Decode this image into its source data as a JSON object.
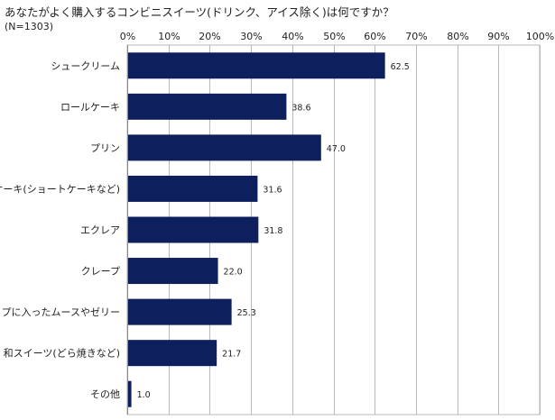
{
  "title": "あなたがよく購入するコンビニスイーツ(ドリンク、アイス除く)は何ですか？",
  "subtitle": "(N=1303)",
  "chart_data": {
    "type": "bar",
    "orientation": "horizontal",
    "categories": [
      "シュークリーム",
      "ロールケーキ",
      "プリン",
      "ケーキ(ショートケーキなど)",
      "エクレア",
      "クレープ",
      "カップに入ったムースやゼリー",
      "和スイーツ(どら焼きなど)",
      "その他"
    ],
    "values": [
      62.5,
      38.6,
      47.0,
      31.6,
      31.8,
      22.0,
      25.3,
      21.7,
      1.0
    ],
    "value_labels": [
      "62.5",
      "38.6",
      "47.0",
      "31.6",
      "31.8",
      "22.0",
      "25.3",
      "21.7",
      "1.0"
    ],
    "xlim": [
      0,
      100
    ],
    "x_ticks": [
      0,
      10,
      20,
      30,
      40,
      50,
      60,
      70,
      80,
      90,
      100
    ],
    "x_tick_labels": [
      "0%",
      "10%",
      "20%",
      "30%",
      "40%",
      "50%",
      "60%",
      "70%",
      "80%",
      "90%",
      "100%"
    ],
    "x_axis_position": "top",
    "grid": true,
    "legend": false,
    "bar_color": "#0d1f5c",
    "grid_color": "#b8b8b8"
  }
}
